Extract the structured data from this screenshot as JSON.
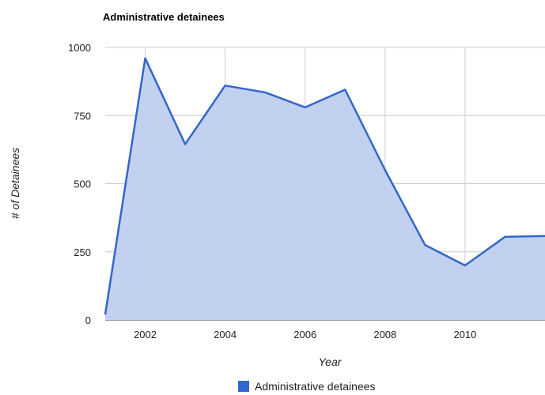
{
  "chart_data": {
    "type": "area",
    "title": "Administrative detainees",
    "xlabel": "Year",
    "ylabel": "# of Detainees",
    "x": [
      2001,
      2002,
      2003,
      2004,
      2005,
      2006,
      2007,
      2008,
      2009,
      2010,
      2011,
      2012
    ],
    "x_tick_labels": [
      "2002",
      "2004",
      "2006",
      "2008",
      "2010"
    ],
    "y_tick_labels": [
      "1000",
      "750",
      "500",
      "250",
      "0"
    ],
    "series": [
      {
        "name": "Administrative detainees",
        "values": [
          20,
          960,
          645,
          860,
          835,
          780,
          845,
          550,
          275,
          200,
          305,
          308
        ]
      }
    ],
    "xlim": [
      2001,
      2012
    ],
    "ylim": [
      0,
      1000
    ],
    "grid": true,
    "legend": "bottom",
    "colors": {
      "line": "#3366cc",
      "fill": "#c2d1ef",
      "grid": "#cccccc"
    }
  }
}
